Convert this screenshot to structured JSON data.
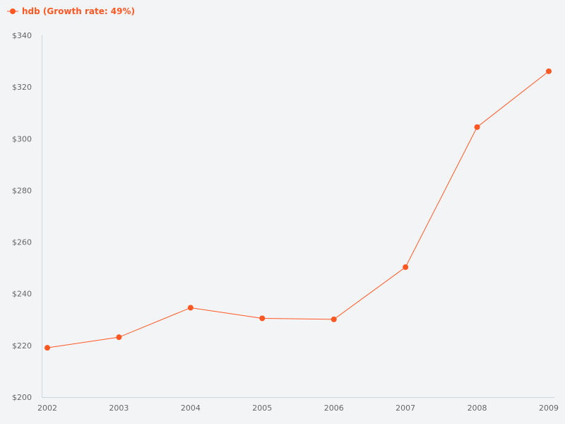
{
  "chart_data": {
    "type": "line",
    "categories": [
      "2002",
      "2003",
      "2004",
      "2005",
      "2006",
      "2007",
      "2008",
      "2009"
    ],
    "series": [
      {
        "name": "hdb (Growth rate: 49%)",
        "values": [
          219.1,
          223.2,
          234.6,
          230.5,
          230.1,
          250.3,
          304.5,
          326.1
        ]
      }
    ],
    "ylim": [
      200,
      340
    ],
    "yticks": [
      "$200",
      "$220",
      "$240",
      "$260",
      "$280",
      "$300",
      "$320",
      "$340"
    ],
    "ytick_values": [
      200,
      220,
      240,
      260,
      280,
      300,
      320,
      340
    ],
    "grid": false,
    "legend_position": "top-left",
    "color": "#ff5722",
    "xlabel": "",
    "ylabel": ""
  }
}
